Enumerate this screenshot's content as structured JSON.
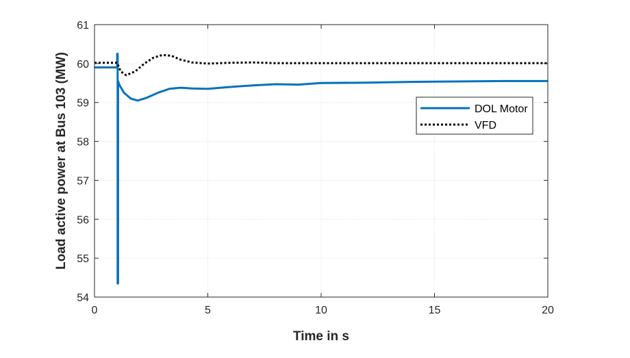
{
  "chart_data": {
    "type": "line",
    "title": "",
    "xlabel": "Time in s",
    "ylabel": "Load active power at Bus 103 (MW)",
    "xlim": [
      0,
      20
    ],
    "ylim": [
      54,
      61
    ],
    "xticks": [
      0,
      5,
      10,
      15,
      20
    ],
    "yticks": [
      54,
      55,
      56,
      57,
      58,
      59,
      60,
      61
    ],
    "grid": true,
    "legend_placement": "right",
    "series": [
      {
        "name": "DOL Motor",
        "color": "#0072BD",
        "style": "solid",
        "x": [
          0,
          1.0,
          1.0,
          1.02,
          1.02,
          1.04,
          1.04,
          1.1,
          1.3,
          1.6,
          1.9,
          2.3,
          2.8,
          3.3,
          3.8,
          4.3,
          5,
          6,
          7,
          8,
          9,
          10,
          12,
          14,
          16,
          18,
          20
        ],
        "y": [
          59.9,
          59.9,
          60.25,
          60.25,
          54.35,
          54.35,
          59.55,
          59.45,
          59.25,
          59.1,
          59.05,
          59.12,
          59.25,
          59.35,
          59.38,
          59.36,
          59.35,
          59.4,
          59.44,
          59.47,
          59.46,
          59.5,
          59.51,
          59.53,
          59.54,
          59.55,
          59.55
        ]
      },
      {
        "name": "VFD",
        "color": "#000000",
        "style": "dotted",
        "x": [
          0,
          1.0,
          1.15,
          1.4,
          1.8,
          2.2,
          2.6,
          3.0,
          3.4,
          3.8,
          4.3,
          5,
          6,
          7,
          8,
          10,
          15,
          20
        ],
        "y": [
          60.02,
          60.02,
          59.8,
          59.7,
          59.8,
          60.0,
          60.15,
          60.22,
          60.2,
          60.1,
          60.03,
          60.0,
          60.02,
          60.03,
          60.01,
          60.01,
          60.01,
          60.01
        ]
      }
    ]
  }
}
